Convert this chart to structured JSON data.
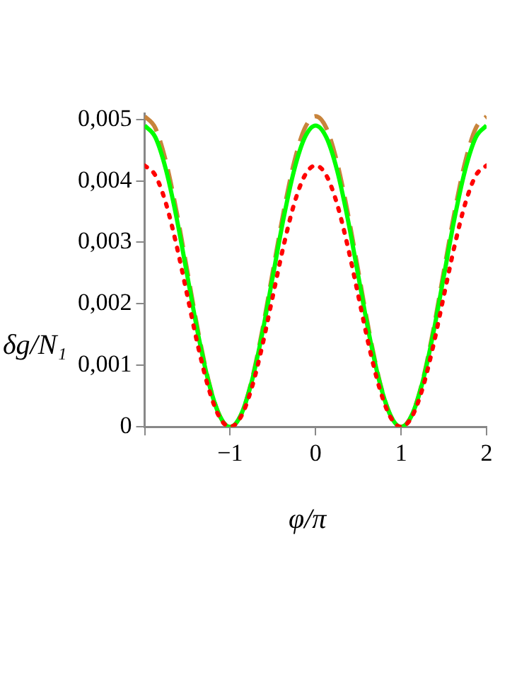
{
  "chart_data": {
    "type": "line",
    "xlabel": "φ/π",
    "ylabel": "δg/N₁",
    "grid": false,
    "legend": false,
    "marker": "none",
    "x": [
      -2,
      -1.875,
      -1.75,
      -1.625,
      -1.5,
      -1.375,
      -1.25,
      -1.125,
      -1,
      -0.875,
      -0.75,
      -0.625,
      -0.5,
      -0.375,
      -0.25,
      -0.125,
      0,
      0.125,
      0.25,
      0.375,
      0.5,
      0.625,
      0.75,
      0.875,
      1,
      1.125,
      1.25,
      1.375,
      1.5,
      1.625,
      1.75,
      1.875,
      2
    ],
    "xlim": [
      -2,
      2
    ],
    "xticks": [
      {
        "value": -2,
        "label": null
      },
      {
        "value": -1,
        "label": "−1"
      },
      0,
      1,
      2
    ],
    "ylim": [
      0,
      0.0051
    ],
    "yticks": [
      0,
      {
        "value": 0.001,
        "label": "0,001"
      },
      {
        "value": 0.002,
        "label": "0,002"
      },
      {
        "value": 0.003,
        "label": "0,003"
      },
      {
        "value": 0.004,
        "label": "0,004"
      },
      {
        "value": 0.005,
        "label": "0,005"
      }
    ],
    "series": [
      {
        "color": "#ff0000",
        "line_style": "dotted",
        "values": [
          0.00425,
          0.00409,
          0.00363,
          0.00294,
          0.00213,
          0.00131,
          0.00062,
          0.00016,
          0,
          0.00016,
          0.00062,
          0.00131,
          0.00213,
          0.00294,
          0.00363,
          0.00409,
          0.00425,
          0.00409,
          0.00363,
          0.00294,
          0.00213,
          0.00131,
          0.00062,
          0.00016,
          0,
          0.00016,
          0.00062,
          0.00131,
          0.00213,
          0.00294,
          0.00363,
          0.00409,
          0.00425
        ]
      },
      {
        "color": "#00ff00",
        "line_style": "solid",
        "values": [
          0.0049,
          0.00471,
          0.00418,
          0.00339,
          0.00245,
          0.00151,
          0.00072,
          0.00019,
          0,
          0.00019,
          0.00072,
          0.00151,
          0.00245,
          0.00339,
          0.00418,
          0.00471,
          0.0049,
          0.00471,
          0.00418,
          0.00339,
          0.00245,
          0.00151,
          0.00072,
          0.00019,
          0,
          0.00019,
          0.00072,
          0.00151,
          0.00245,
          0.00339,
          0.00418,
          0.00471,
          0.0049
        ]
      },
      {
        "color": "#c8843c",
        "line_style": "dashed",
        "values": [
          0.00505,
          0.00486,
          0.00431,
          0.00349,
          0.00253,
          0.00156,
          0.00074,
          0.00019,
          0,
          0.00019,
          0.00074,
          0.00156,
          0.00253,
          0.00349,
          0.00431,
          0.00486,
          0.00505,
          0.00486,
          0.00431,
          0.00349,
          0.00253,
          0.00156,
          0.00074,
          0.00019,
          0,
          0.00019,
          0.00074,
          0.00156,
          0.00253,
          0.00349,
          0.00431,
          0.00486,
          0.00505
        ]
      }
    ]
  }
}
